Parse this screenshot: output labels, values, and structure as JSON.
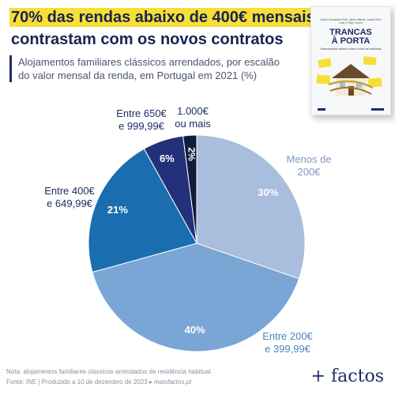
{
  "title_line1": "70% das rendas abaixo de 400€ mensais",
  "title_line2": "contrastam com os novos contratos",
  "subtitle": "Alojamentos familiares clássicos arrendados, por escalão do valor mensal da renda, em Portugal em 2021 (%)",
  "book": {
    "authors": "Carlos Guimarães Pinto, Jaime Valente, Joana Pinho Leite e Filipe Charro",
    "title_line1": "TRANCAS",
    "title_line2": "À PORTA",
    "subtitle": "Destrancando velhos cofres à crise da habitação",
    "colors": {
      "accent": "#f6df37",
      "title": "#1d2c66",
      "roof": "#6b4a2c"
    }
  },
  "chart_data": {
    "type": "pie",
    "categories": [
      "Menos de 200€",
      "Entre 200€ e 399,99€",
      "Entre 400€ e 649,99€",
      "Entre 650€ e 999,99€",
      "1.000€ ou mais"
    ],
    "values": [
      30,
      40,
      21,
      6,
      2
    ],
    "value_labels": [
      "30%",
      "40%",
      "21%",
      "6%",
      "2%"
    ],
    "labels": [
      {
        "line1": "Menos de",
        "line2": "200€"
      },
      {
        "line1": "Entre 200€",
        "line2": "e 399,99€"
      },
      {
        "line1": "Entre 400€",
        "line2": "e 649,99€"
      },
      {
        "line1": "Entre 650€",
        "line2": "e 999,99€"
      },
      {
        "line1": "1.000€",
        "line2": "ou mais"
      }
    ],
    "colors": [
      "#a9bedc",
      "#7aa6d6",
      "#1a6eaf",
      "#23307a",
      "#111c3b"
    ],
    "label_colors": [
      "#7f9ac2",
      "#4f83be",
      "#1d2c66",
      "#1d2c66",
      "#1d2c66"
    ]
  },
  "note": "Nota: alojamentos familiares clássicos arrendados de residência habitual.",
  "source_prefix": "Fonte: INE  |  Produzido a 10 de dezembro de 2023 ▸ ",
  "source_site": "maisfactos.pt",
  "logo": "+ factos"
}
